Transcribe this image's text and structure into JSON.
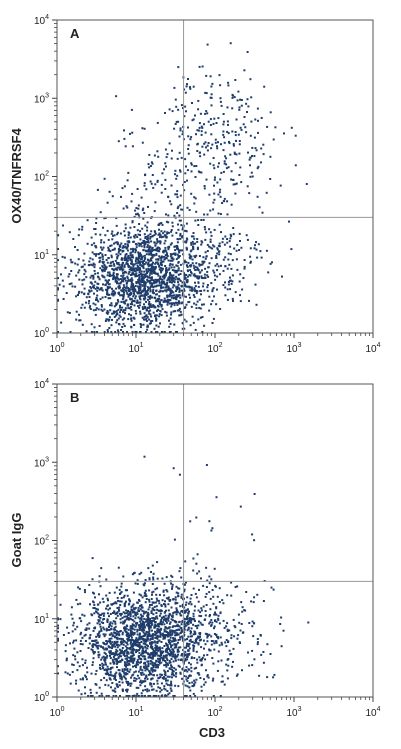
{
  "chart_data": [
    {
      "type": "scatter",
      "panel_label": "A",
      "xlabel": "",
      "ylabel": "OX40/TNFRSF4",
      "xscale": "log",
      "yscale": "log",
      "xlim": [
        1,
        10000
      ],
      "ylim": [
        1,
        10000
      ],
      "x_ticks": [
        "10",
        "10",
        "10",
        "10",
        "10"
      ],
      "x_tick_exponents": [
        "0",
        "1",
        "2",
        "3",
        "4"
      ],
      "y_ticks": [
        "10",
        "10",
        "10",
        "10",
        "10"
      ],
      "y_tick_exponents": [
        "0",
        "1",
        "2",
        "3",
        "4"
      ],
      "quadrant_gate": {
        "x": 40,
        "y": 30
      },
      "point_color": "#1f3d6b",
      "gate_color": "#999999",
      "populations": [
        {
          "cx": 12,
          "cy": 5,
          "sx": 0.42,
          "sy": 0.34,
          "n": 1700
        },
        {
          "cx": 60,
          "cy": 8,
          "sx": 0.45,
          "sy": 0.35,
          "n": 260
        },
        {
          "cx": 90,
          "cy": 260,
          "sx": 0.45,
          "sy": 0.45,
          "n": 320
        },
        {
          "cx": 25,
          "cy": 60,
          "sx": 0.35,
          "sy": 0.3,
          "n": 70
        }
      ]
    },
    {
      "type": "scatter",
      "panel_label": "B",
      "xlabel": "CD3",
      "ylabel": "Goat IgG",
      "xscale": "log",
      "yscale": "log",
      "xlim": [
        1,
        10000
      ],
      "ylim": [
        1,
        10000
      ],
      "x_ticks": [
        "10",
        "10",
        "10",
        "10",
        "10"
      ],
      "x_tick_exponents": [
        "0",
        "1",
        "2",
        "3",
        "4"
      ],
      "y_ticks": [
        "10",
        "10",
        "10",
        "10",
        "10"
      ],
      "y_tick_exponents": [
        "0",
        "1",
        "2",
        "3",
        "4"
      ],
      "quadrant_gate": {
        "x": 40,
        "y": 30
      },
      "point_color": "#1f3d6b",
      "gate_color": "#999999",
      "populations": [
        {
          "cx": 12,
          "cy": 5,
          "sx": 0.42,
          "sy": 0.34,
          "n": 1900
        },
        {
          "cx": 60,
          "cy": 8,
          "sx": 0.45,
          "sy": 0.35,
          "n": 320
        },
        {
          "cx": 80,
          "cy": 200,
          "sx": 0.45,
          "sy": 0.45,
          "n": 14
        }
      ]
    }
  ]
}
